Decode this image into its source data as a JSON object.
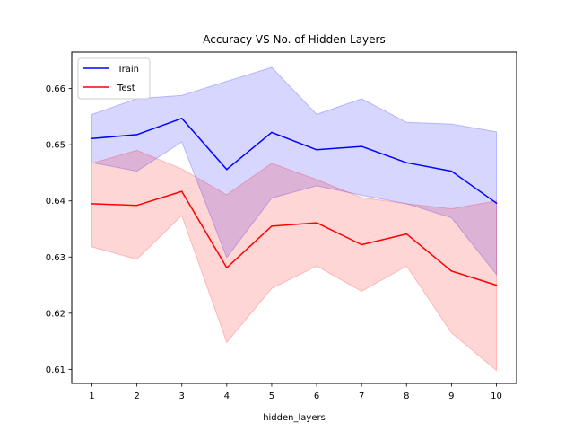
{
  "chart_data": {
    "type": "line",
    "title": "Accuracy VS No. of Hidden Layers",
    "xlabel": "hidden_layers",
    "ylabel": "",
    "x": [
      1,
      2,
      3,
      4,
      5,
      6,
      7,
      8,
      9,
      10
    ],
    "xlim": [
      0.55,
      10.45
    ],
    "ylim": [
      0.6075,
      0.6665
    ],
    "yticks": [
      0.61,
      0.62,
      0.63,
      0.64,
      0.65,
      0.66
    ],
    "ytick_labels": [
      "0.61",
      "0.62",
      "0.63",
      "0.64",
      "0.65",
      "0.66"
    ],
    "xtick_labels": [
      "1",
      "2",
      "3",
      "4",
      "5",
      "6",
      "7",
      "8",
      "9",
      "10"
    ],
    "legend_position": "top-left",
    "grid": false,
    "series": [
      {
        "name": "Train",
        "color": "#0000ff",
        "values": [
          0.6511,
          0.6518,
          0.6547,
          0.6456,
          0.6522,
          0.6491,
          0.6497,
          0.6468,
          0.6453,
          0.6396
        ],
        "band_upper": [
          0.6554,
          0.6582,
          0.6588,
          0.6613,
          0.6638,
          0.6554,
          0.6582,
          0.654,
          0.6537,
          0.6523
        ],
        "band_lower": [
          0.6468,
          0.6453,
          0.6505,
          0.6299,
          0.6405,
          0.6427,
          0.641,
          0.6395,
          0.637,
          0.6269
        ],
        "band_color": "#0000ff"
      },
      {
        "name": "Test",
        "color": "#ff0000",
        "values": [
          0.6395,
          0.6392,
          0.6417,
          0.6281,
          0.6355,
          0.6361,
          0.6322,
          0.6341,
          0.6275,
          0.625
        ],
        "band_upper": [
          0.6467,
          0.649,
          0.6457,
          0.6411,
          0.6467,
          0.6438,
          0.6406,
          0.6395,
          0.6386,
          0.64
        ],
        "band_lower": [
          0.6318,
          0.6296,
          0.6374,
          0.6148,
          0.6244,
          0.6284,
          0.6239,
          0.6284,
          0.6165,
          0.6098
        ],
        "band_color": "#ff0000"
      }
    ]
  }
}
